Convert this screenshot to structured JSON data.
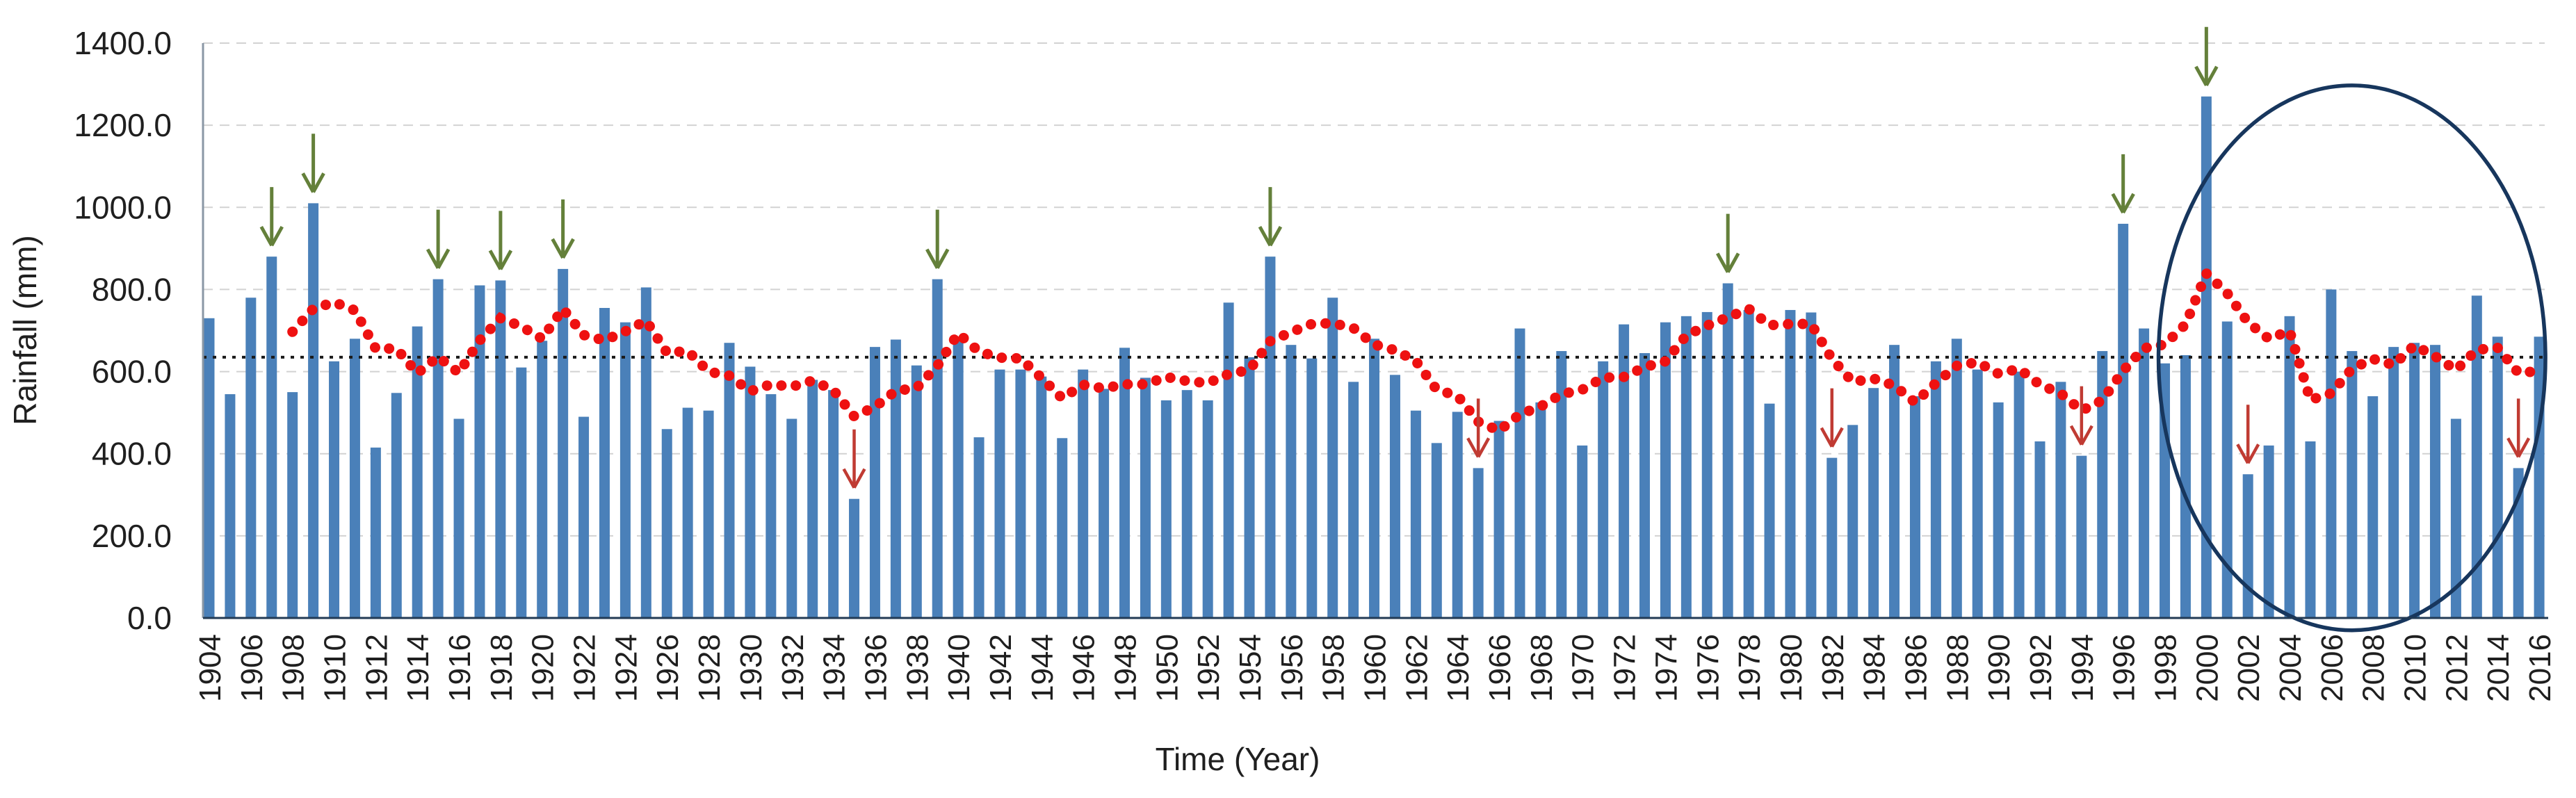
{
  "chart_data": {
    "type": "bar",
    "title": "",
    "xlabel": "Time (Year)",
    "ylabel": "Rainfall (mm)",
    "ylim": [
      0,
      1400
    ],
    "ytick_step": 200,
    "ytick_decimals": 1,
    "x_tick_interval": 2,
    "grid": "horizontal-dashed-light-gray",
    "legend": "none",
    "categories": [
      1904,
      1905,
      1906,
      1907,
      1908,
      1909,
      1910,
      1911,
      1912,
      1913,
      1914,
      1915,
      1916,
      1917,
      1918,
      1919,
      1920,
      1921,
      1922,
      1923,
      1924,
      1925,
      1926,
      1927,
      1928,
      1929,
      1930,
      1931,
      1932,
      1933,
      1934,
      1935,
      1936,
      1937,
      1938,
      1939,
      1940,
      1941,
      1942,
      1943,
      1944,
      1945,
      1946,
      1947,
      1948,
      1949,
      1950,
      1951,
      1952,
      1953,
      1954,
      1955,
      1956,
      1957,
      1958,
      1959,
      1960,
      1961,
      1962,
      1963,
      1964,
      1965,
      1966,
      1967,
      1968,
      1969,
      1970,
      1971,
      1972,
      1973,
      1974,
      1975,
      1976,
      1977,
      1978,
      1979,
      1980,
      1981,
      1982,
      1983,
      1984,
      1985,
      1986,
      1987,
      1988,
      1989,
      1990,
      1991,
      1992,
      1993,
      1994,
      1995,
      1996,
      1997,
      1998,
      1999,
      2000,
      2001,
      2002,
      2003,
      2004,
      2005,
      2006,
      2007,
      2008,
      2009,
      2010,
      2011,
      2012,
      2013,
      2014,
      2015,
      2016
    ],
    "series": [
      {
        "name": "annual-rainfall-mm",
        "type": "bar",
        "color": "#4a80b9",
        "values": [
          730,
          545,
          780,
          880,
          550,
          1010,
          625,
          680,
          415,
          548,
          710,
          825,
          485,
          810,
          822,
          610,
          675,
          850,
          490,
          755,
          720,
          805,
          460,
          512,
          505,
          670,
          612,
          545,
          485,
          580,
          555,
          290,
          660,
          678,
          615,
          825,
          685,
          440,
          605,
          605,
          588,
          438,
          605,
          558,
          658,
          585,
          530,
          555,
          530,
          768,
          635,
          880,
          665,
          632,
          780,
          575,
          680,
          592,
          505,
          426,
          502,
          365,
          480,
          705,
          525,
          650,
          420,
          625,
          715,
          645,
          720,
          735,
          745,
          815,
          750,
          522,
          750,
          744,
          390,
          470,
          560,
          665,
          540,
          625,
          680,
          605,
          525,
          600,
          430,
          575,
          395,
          650,
          960,
          705,
          620,
          640,
          1270,
          722,
          350,
          420,
          735,
          430,
          800,
          650,
          540,
          660,
          670,
          665,
          485,
          785,
          685,
          365,
          685
        ]
      },
      {
        "name": "5yr-moving-average-mm",
        "type": "dotted-line",
        "color": "#ee1111",
        "start_year": 1908,
        "values": [
          697,
          753,
          769,
          749,
          656,
          656,
          596,
          636,
          597,
          676,
          730,
          710,
          680,
          753,
          689,
          676,
          698,
          724,
          646,
          650,
          600,
          590,
          552,
          569,
          563,
          578,
          555,
          491,
          514,
          553,
          560,
          614,
          693,
          649,
          634,
          632,
          585,
          535,
          568,
          559,
          569,
          569,
          587,
          577,
          572,
          594,
          604,
          674,
          696,
          716,
          718,
          706,
          666,
          652,
          626,
          556,
          541,
          478,
          456,
          496,
          515,
          545,
          556,
          585,
          587,
          611,
          625,
          688,
          712,
          732,
          753,
          713,
          716,
          716,
          631,
          575,
          583,
          566,
          525,
          572,
          614,
          623,
          595,
          607,
          568,
          547,
          505,
          530,
          602,
          657,
          666,
          715,
          839,
          791,
          720,
          680,
          699,
          531,
          547,
          607,
          631,
          616,
          664,
          637,
          604,
          653,
          658,
          597,
          601
        ]
      },
      {
        "name": "long-term-mean-line",
        "type": "dashed-line",
        "color": "#1a1a1a",
        "value": 635
      }
    ],
    "annotations": {
      "wet_year_arrows": {
        "color": "#64803a",
        "years": [
          1907,
          1909,
          1915,
          1918,
          1921,
          1939,
          1955,
          1977,
          1996,
          2000
        ]
      },
      "dry_year_arrows": {
        "color": "#c03b33",
        "years": [
          1935,
          1965,
          1982,
          1994,
          2002,
          2015
        ]
      },
      "highlight_ellipse": {
        "color": "#17365d",
        "x_from_year": 1997.7,
        "x_to_year": 2016.3,
        "y_from_mm": -30,
        "y_to_mm": 1297
      }
    }
  }
}
